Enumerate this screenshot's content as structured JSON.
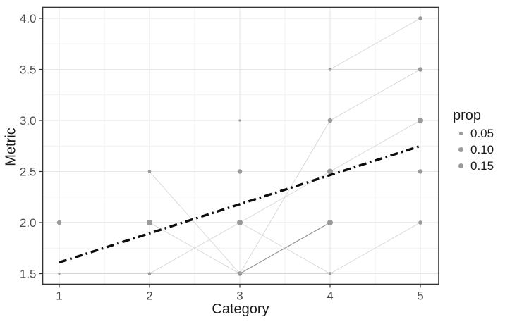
{
  "chart_data": {
    "type": "scatter",
    "title": "",
    "xlabel": "Category",
    "ylabel": "Metric",
    "x_ticks": [
      "1",
      "2",
      "3",
      "4",
      "5"
    ],
    "y_ticks": [
      "1.5",
      "2.0",
      "2.5",
      "3.0",
      "3.5",
      "4.0"
    ],
    "xlim": [
      0.81,
      5.2
    ],
    "ylim": [
      1.39,
      4.11
    ],
    "grid": "major and minor gridlines on, light gray, white panel, dark border (theme_bw)",
    "legend_position": "right",
    "points": [
      {
        "category": 1,
        "metric": 2.0,
        "prop": 0.1
      },
      {
        "category": 1,
        "metric": 1.5,
        "prop": 0.025
      },
      {
        "category": 2,
        "metric": 2.5,
        "prop": 0.05
      },
      {
        "category": 2,
        "metric": 2.0,
        "prop": 0.15
      },
      {
        "category": 2,
        "metric": 1.5,
        "prop": 0.05
      },
      {
        "category": 3,
        "metric": 3.0,
        "prop": 0.025
      },
      {
        "category": 3,
        "metric": 2.5,
        "prop": 0.1
      },
      {
        "category": 3,
        "metric": 2.0,
        "prop": 0.15
      },
      {
        "category": 3,
        "metric": 1.5,
        "prop": 0.1
      },
      {
        "category": 4,
        "metric": 3.5,
        "prop": 0.05
      },
      {
        "category": 4,
        "metric": 3.0,
        "prop": 0.1
      },
      {
        "category": 4,
        "metric": 2.5,
        "prop": 0.15
      },
      {
        "category": 4,
        "metric": 2.0,
        "prop": 0.15
      },
      {
        "category": 4,
        "metric": 1.5,
        "prop": 0.05
      },
      {
        "category": 5,
        "metric": 4.0,
        "prop": 0.075
      },
      {
        "category": 5,
        "metric": 3.5,
        "prop": 0.1
      },
      {
        "category": 5,
        "metric": 3.0,
        "prop": 0.15
      },
      {
        "category": 5,
        "metric": 2.5,
        "prop": 0.1
      },
      {
        "category": 5,
        "metric": 2.0,
        "prop": 0.075
      }
    ],
    "trend_line": {
      "style": "dot-dash, thick, black",
      "from": {
        "category": 1,
        "metric": 1.61
      },
      "to": {
        "category": 5,
        "metric": 2.75
      }
    },
    "segments": [
      {
        "from": {
          "category": 1,
          "metric": 1.5
        },
        "to": {
          "category": 2,
          "metric": 1.5
        },
        "weight": "light"
      },
      {
        "from": {
          "category": 1,
          "metric": 2.0
        },
        "to": {
          "category": 2,
          "metric": 2.0
        },
        "weight": "light"
      },
      {
        "from": {
          "category": 2,
          "metric": 1.5
        },
        "to": {
          "category": 3,
          "metric": 1.5
        },
        "weight": "light"
      },
      {
        "from": {
          "category": 2,
          "metric": 1.5
        },
        "to": {
          "category": 3,
          "metric": 2.0
        },
        "weight": "light"
      },
      {
        "from": {
          "category": 2,
          "metric": 2.0
        },
        "to": {
          "category": 3,
          "metric": 1.5
        },
        "weight": "light"
      },
      {
        "from": {
          "category": 2,
          "metric": 2.5
        },
        "to": {
          "category": 3,
          "metric": 1.5
        },
        "weight": "light"
      },
      {
        "from": {
          "category": 2,
          "metric": 2.0
        },
        "to": {
          "category": 3,
          "metric": 2.0
        },
        "weight": "light"
      },
      {
        "from": {
          "category": 3,
          "metric": 1.5
        },
        "to": {
          "category": 4,
          "metric": 1.5
        },
        "weight": "light"
      },
      {
        "from": {
          "category": 3,
          "metric": 1.5
        },
        "to": {
          "category": 4,
          "metric": 2.0
        },
        "weight": "dark"
      },
      {
        "from": {
          "category": 3,
          "metric": 1.5
        },
        "to": {
          "category": 4,
          "metric": 3.0
        },
        "weight": "light"
      },
      {
        "from": {
          "category": 3,
          "metric": 2.0
        },
        "to": {
          "category": 4,
          "metric": 1.5
        },
        "weight": "light"
      },
      {
        "from": {
          "category": 3,
          "metric": 2.0
        },
        "to": {
          "category": 4,
          "metric": 2.5
        },
        "weight": "light"
      },
      {
        "from": {
          "category": 4,
          "metric": 1.5
        },
        "to": {
          "category": 5,
          "metric": 2.0
        },
        "weight": "light"
      },
      {
        "from": {
          "category": 4,
          "metric": 2.0
        },
        "to": {
          "category": 5,
          "metric": 2.0
        },
        "weight": "light"
      },
      {
        "from": {
          "category": 4,
          "metric": 2.5
        },
        "to": {
          "category": 5,
          "metric": 3.0
        },
        "weight": "light"
      },
      {
        "from": {
          "category": 4,
          "metric": 3.0
        },
        "to": {
          "category": 5,
          "metric": 3.5
        },
        "weight": "light"
      },
      {
        "from": {
          "category": 4,
          "metric": 3.5
        },
        "to": {
          "category": 5,
          "metric": 3.5
        },
        "weight": "light"
      },
      {
        "from": {
          "category": 4,
          "metric": 3.5
        },
        "to": {
          "category": 5,
          "metric": 4.0
        },
        "weight": "light"
      }
    ],
    "legend": {
      "title": "prop",
      "entries": [
        {
          "label": "0.05",
          "prop": 0.05
        },
        {
          "label": "0.10",
          "prop": 0.1
        },
        {
          "label": "0.15",
          "prop": 0.15
        }
      ]
    },
    "colors": {
      "point": "#9a9a9a",
      "trend": "#0d0d0d",
      "segment_light": "#d2d2d2",
      "segment_dark": "#8e8e8e",
      "grid_major": "#e6e6e6",
      "grid_minor": "#f1f1f1",
      "panel_border": "#333333",
      "tick_mark": "#333333",
      "tick_label": "#4d4d4d",
      "axis_title": "#1a1a1a",
      "background": "#ffffff"
    }
  }
}
